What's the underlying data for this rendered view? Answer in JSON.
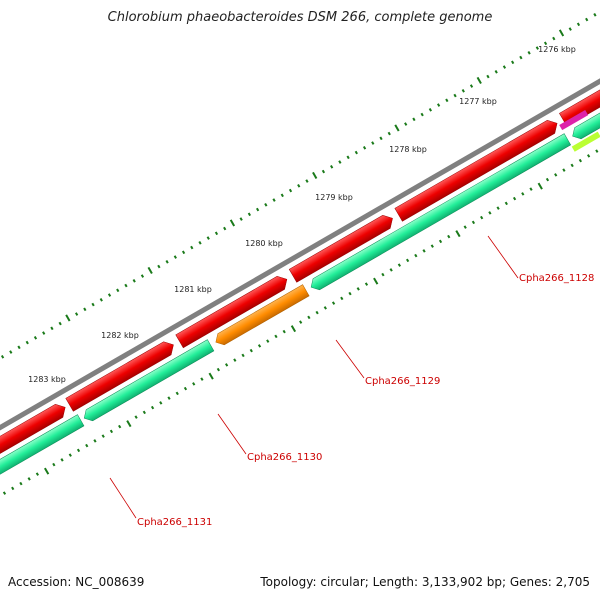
{
  "title": "Chlorobium phaeobacteroides DSM 266, complete genome",
  "footer": {
    "accession": "Accession: NC_008639",
    "summary": "Topology: circular; Length: 3,133,902 bp; Genes: 2,705"
  },
  "ticks": [
    {
      "label": "1276 kbp"
    },
    {
      "label": "1277 kbp"
    },
    {
      "label": "1278 kbp"
    },
    {
      "label": "1279 kbp"
    },
    {
      "label": "1280 kbp"
    },
    {
      "label": "1281 kbp"
    },
    {
      "label": "1282 kbp"
    },
    {
      "label": "1283 kbp"
    }
  ],
  "genes": [
    {
      "label": "Cpha266_1128"
    },
    {
      "label": "Cpha266_1129"
    },
    {
      "label": "Cpha266_1130"
    },
    {
      "label": "Cpha266_1131"
    }
  ],
  "colors": {
    "backbone": "#808080",
    "cds_forward": "#ee0000",
    "cds_reverse": "#22ee99",
    "cds_orange": "#ff8c00",
    "tick": "#1a7a1a",
    "label": "#cc0000",
    "magenta": "#dd22aa",
    "lime": "#bbff33"
  }
}
